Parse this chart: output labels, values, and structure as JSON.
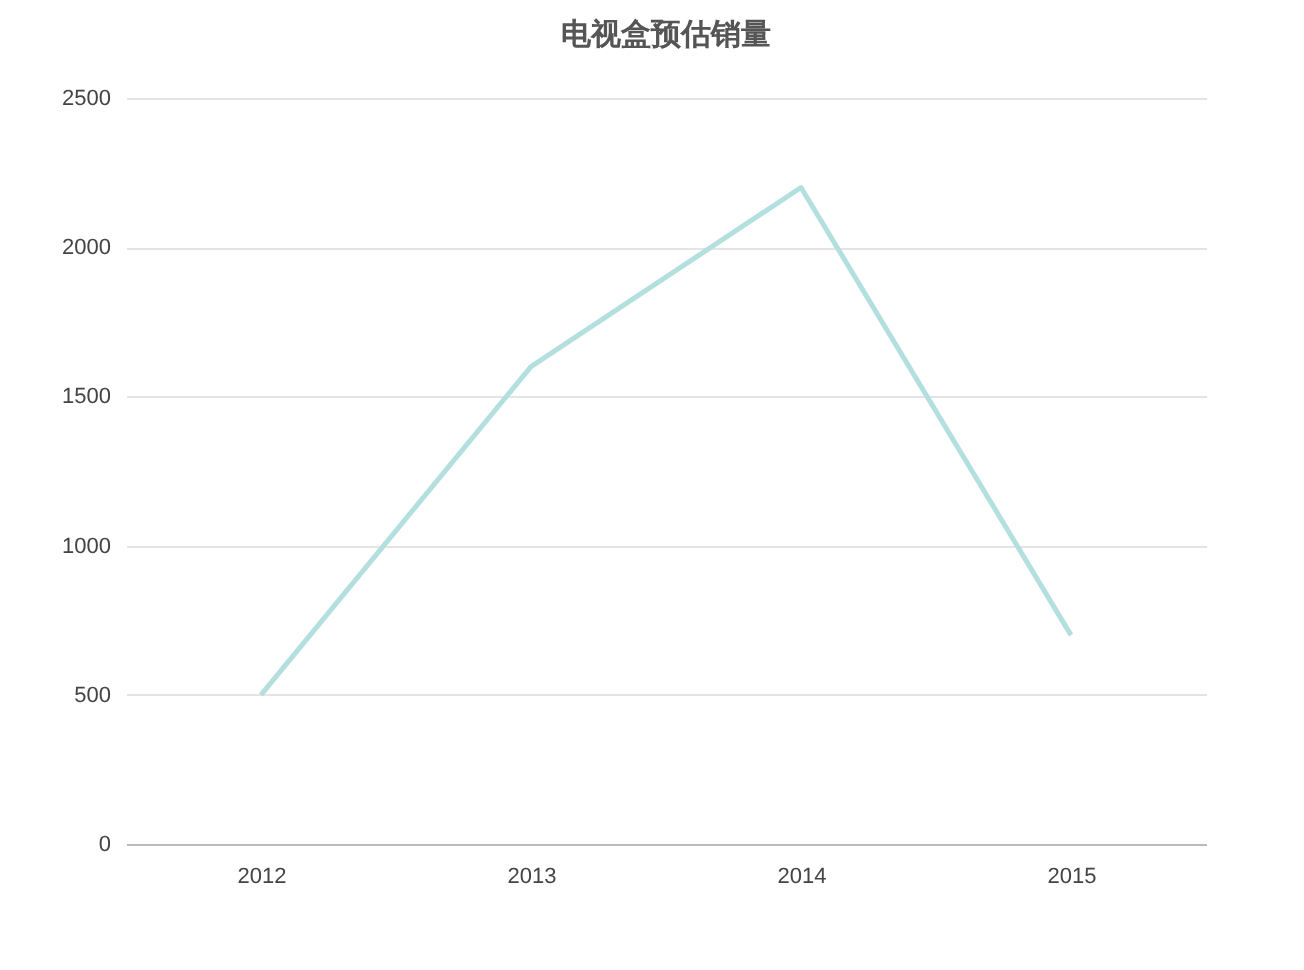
{
  "chart_data": {
    "type": "line",
    "title": "电视盒预估销量",
    "categories": [
      "2012",
      "2013",
      "2014",
      "2015"
    ],
    "series": [
      {
        "color": "#b3dfdf",
        "values": [
          500,
          1600,
          2200,
          700
        ]
      }
    ],
    "ylim": [
      0,
      2500
    ],
    "yticks": [
      0,
      500,
      1000,
      1500,
      2000,
      2500
    ],
    "grid": "y",
    "legend": false,
    "marker": "none",
    "line_style": "solid"
  }
}
